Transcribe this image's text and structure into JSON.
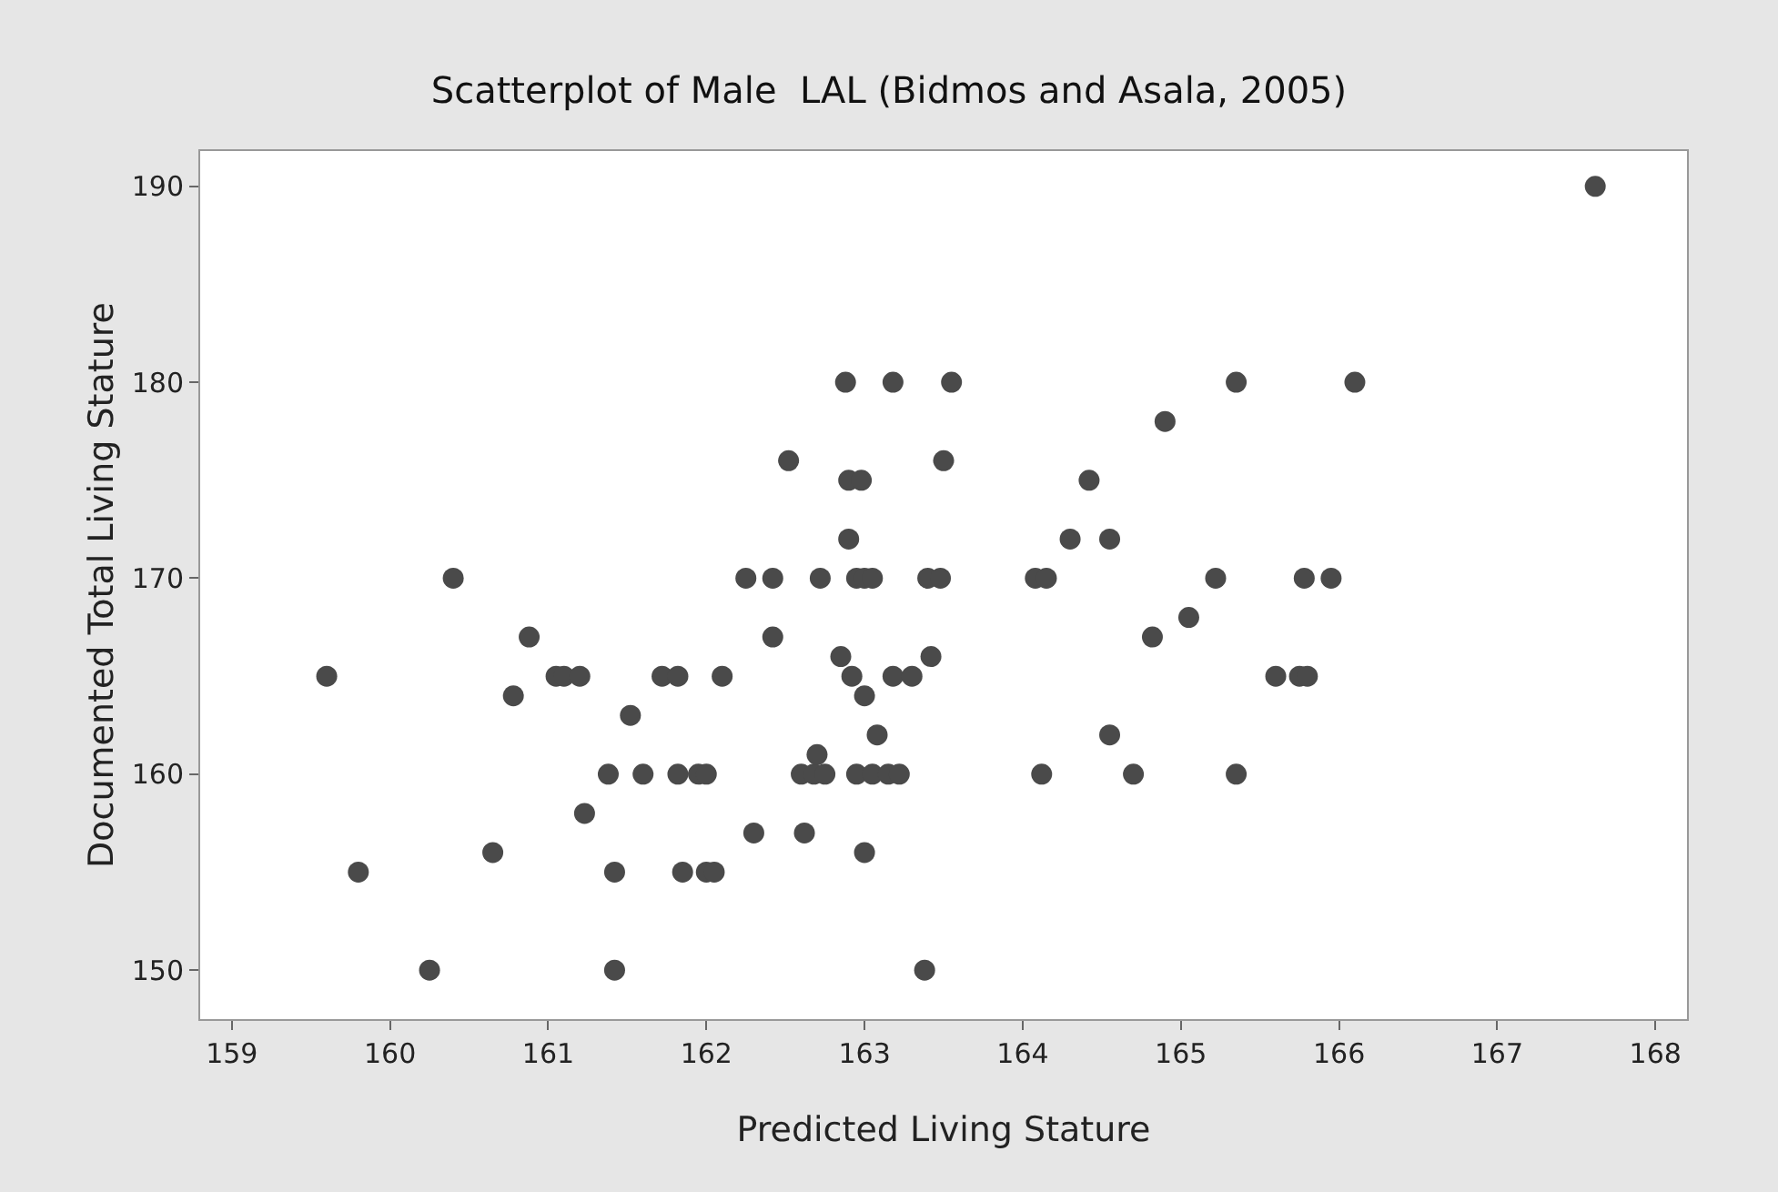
{
  "chart_data": {
    "type": "scatter",
    "title": "Scatterplot of Male  LAL (Bidmos and Asala, 2005)",
    "xlabel": "Predicted Living Stature",
    "ylabel": "Documented Total Living Stature",
    "x": [
      159.6,
      159.8,
      160.25,
      160.4,
      160.65,
      160.78,
      160.88,
      161.05,
      161.1,
      161.2,
      161.23,
      161.38,
      161.42,
      161.42,
      161.52,
      161.6,
      161.72,
      161.82,
      161.82,
      161.85,
      161.95,
      162.0,
      162.0,
      162.05,
      162.1,
      162.25,
      162.3,
      162.42,
      162.42,
      162.52,
      162.6,
      162.62,
      162.68,
      162.7,
      162.72,
      162.75,
      162.85,
      162.88,
      162.9,
      162.9,
      162.92,
      162.95,
      162.95,
      162.98,
      163.0,
      163.0,
      163.0,
      163.05,
      163.05,
      163.08,
      163.15,
      163.18,
      163.18,
      163.22,
      163.3,
      163.38,
      163.4,
      163.42,
      163.48,
      163.5,
      163.55,
      164.08,
      164.12,
      164.15,
      164.3,
      164.42,
      164.55,
      164.55,
      164.7,
      164.82,
      164.9,
      165.05,
      165.22,
      165.35,
      165.35,
      165.6,
      165.75,
      165.78,
      165.8,
      165.95,
      166.1,
      167.62
    ],
    "values": [
      165,
      155,
      150,
      170,
      156,
      164,
      167,
      165,
      165,
      165,
      158,
      160,
      155,
      150,
      163,
      160,
      165,
      165,
      160,
      155,
      160,
      160,
      155,
      155,
      165,
      170,
      157,
      170,
      167,
      176,
      160,
      157,
      160,
      161,
      170,
      160,
      166,
      180,
      175,
      172,
      165,
      160,
      170,
      175,
      170,
      164,
      156,
      160,
      170,
      162,
      160,
      165,
      180,
      160,
      165,
      150,
      170,
      166,
      170,
      176,
      180,
      170,
      160,
      170,
      172,
      175,
      172,
      162,
      160,
      167,
      178,
      168,
      170,
      180,
      160,
      165,
      165,
      170,
      165,
      170,
      180,
      190
    ],
    "color": "#4a4a4a",
    "marker": "circle",
    "grid": false,
    "xlim": [
      158.8,
      168.2
    ],
    "xticks": [
      159,
      160,
      161,
      162,
      163,
      164,
      165,
      166,
      167,
      168
    ],
    "ylim": [
      147.5,
      191.8
    ],
    "yticks": [
      150,
      160,
      170,
      180,
      190
    ]
  }
}
